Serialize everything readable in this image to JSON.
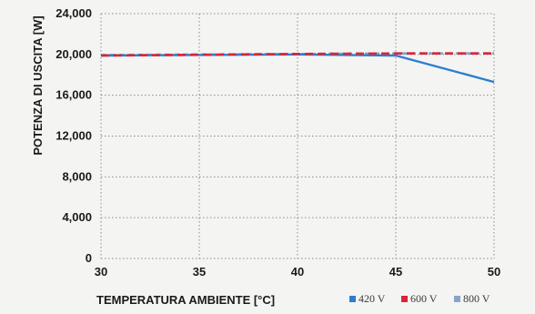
{
  "chart_data": {
    "type": "line",
    "xlabel": "TEMPERATURA AMBIENTE [°C]",
    "ylabel": "POTENZA DI USCITA [W]",
    "xlim": [
      30,
      50
    ],
    "ylim": [
      0,
      24000
    ],
    "x_ticks": [
      30,
      35,
      40,
      45,
      50
    ],
    "x_tick_labels": [
      "30",
      "35",
      "40",
      "45",
      "50"
    ],
    "y_ticks": [
      0,
      4000,
      8000,
      12000,
      16000,
      20000,
      24000
    ],
    "y_tick_labels": [
      "0",
      "4,000",
      "8,000",
      "12,000",
      "16,000",
      "20,000",
      "24,000"
    ],
    "grid": true,
    "legend_position": "bottom-right",
    "series": [
      {
        "name": "420 V",
        "color": "#2a7fd0",
        "style": "solid",
        "x": [
          30,
          40,
          45,
          50
        ],
        "values": [
          19900,
          20000,
          19900,
          17300
        ]
      },
      {
        "name": "600 V",
        "color": "#d9253a",
        "style": "dashed",
        "x": [
          30,
          40,
          45,
          50
        ],
        "values": [
          19900,
          20050,
          20100,
          20100
        ]
      },
      {
        "name": "800 V",
        "color": "#8aa4c8",
        "style": "dashed",
        "x": [
          30,
          40,
          45,
          50
        ],
        "values": [
          19950,
          20050,
          20100,
          20100
        ]
      }
    ]
  }
}
